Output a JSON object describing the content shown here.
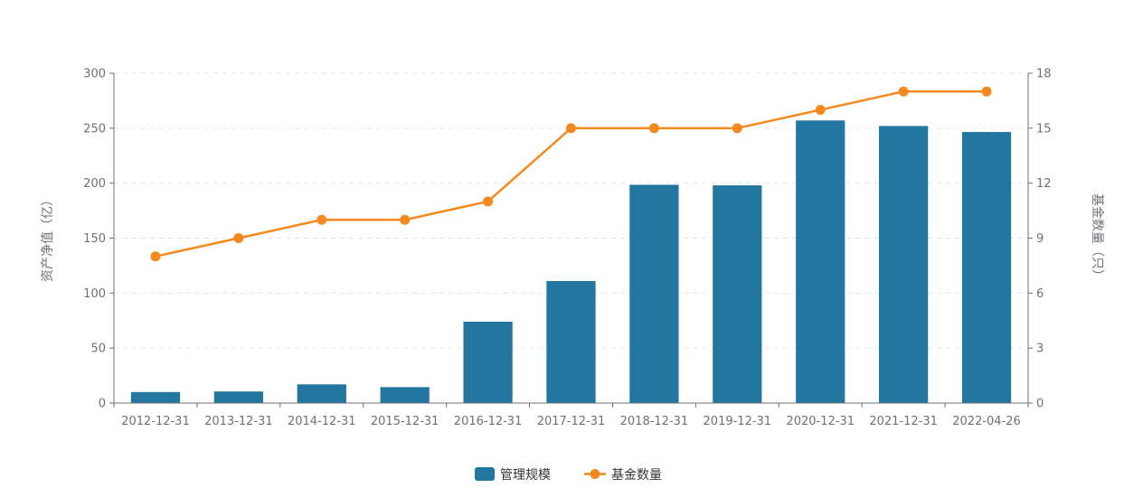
{
  "chart_data": {
    "type": "bar",
    "categories": [
      "2012-12-31",
      "2013-12-31",
      "2014-12-31",
      "2015-12-31",
      "2016-12-31",
      "2017-12-31",
      "2018-12-31",
      "2019-12-31",
      "2020-12-31",
      "2021-12-31",
      "2022-04-26"
    ],
    "series": [
      {
        "name": "管理规模",
        "type": "bar",
        "axis": "left",
        "color": "#22769f",
        "values": [
          10,
          10.5,
          17,
          14.5,
          74,
          111,
          198.5,
          198,
          257,
          252,
          246.5
        ]
      },
      {
        "name": "基金数量",
        "type": "line",
        "axis": "right",
        "color": "#f48a1f",
        "values": [
          8,
          9,
          10,
          10,
          11,
          15,
          15,
          15,
          16,
          17,
          17
        ]
      }
    ],
    "y_left": {
      "label": "资产净值（亿）",
      "min": 0,
      "max": 300,
      "ticks": [
        0,
        50,
        100,
        150,
        200,
        250,
        300
      ]
    },
    "y_right": {
      "label": "基金数量（只）",
      "min": 0,
      "max": 18,
      "ticks": [
        0,
        3,
        6,
        9,
        12,
        15,
        18
      ]
    },
    "grid": true,
    "legend_position": "bottom-center"
  }
}
